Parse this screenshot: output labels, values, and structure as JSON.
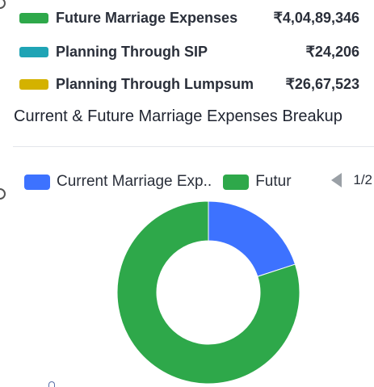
{
  "summary": [
    {
      "label": "Future Marriage Expenses",
      "value": "₹4,04,89,346",
      "color": "#2ea84a"
    },
    {
      "label": "Planning Through SIP",
      "value": "₹24,206",
      "color": "#1fa4b5"
    },
    {
      "label": "Planning Through Lumpsum",
      "value": "₹26,67,523",
      "color": "#d4b200"
    }
  ],
  "chart_data": {
    "type": "pie",
    "title": "Current & Future Marriage Expenses Breakup",
    "legend_position": "top",
    "series": [
      {
        "name": "Current Marriage Exp..",
        "value": 20,
        "color": "#3d72ff"
      },
      {
        "name": "Futur",
        "value": 80,
        "color": "#2ea84a"
      }
    ],
    "legend_page": "1/2"
  }
}
